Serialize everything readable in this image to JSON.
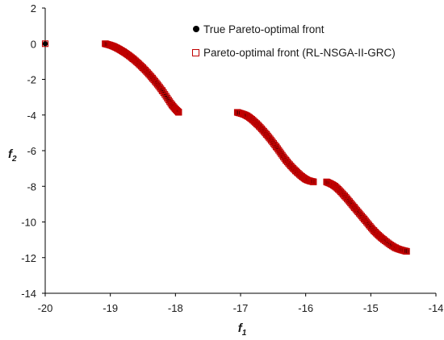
{
  "chart_data": {
    "type": "scatter",
    "xlabel": "f",
    "xlabel_sub": "1",
    "ylabel": "f",
    "ylabel_sub": "2",
    "xlim": [
      -20,
      -14
    ],
    "ylim": [
      -14,
      2
    ],
    "x_ticks": [
      -20,
      -19,
      -18,
      -17,
      -16,
      -15,
      -14
    ],
    "y_ticks": [
      2,
      0,
      -2,
      -4,
      -6,
      -8,
      -10,
      -12,
      -14
    ],
    "grid": false,
    "legend_position": "top-right",
    "series": [
      {
        "name": "True Pareto-optimal front",
        "marker": "filled-circle",
        "color": "#000000",
        "segments": [
          [
            [
              -20.0,
              0.0
            ]
          ],
          [
            [
              -19.08,
              0.0
            ],
            [
              -18.95,
              -0.15
            ],
            [
              -18.8,
              -0.45
            ],
            [
              -18.65,
              -0.85
            ],
            [
              -18.5,
              -1.35
            ],
            [
              -18.35,
              -1.95
            ],
            [
              -18.2,
              -2.65
            ],
            [
              -18.05,
              -3.45
            ],
            [
              -17.95,
              -3.85
            ]
          ],
          [
            [
              -17.05,
              -3.85
            ],
            [
              -16.9,
              -4.05
            ],
            [
              -16.75,
              -4.5
            ],
            [
              -16.6,
              -5.1
            ],
            [
              -16.45,
              -5.8
            ],
            [
              -16.3,
              -6.55
            ],
            [
              -16.15,
              -7.15
            ],
            [
              -16.0,
              -7.6
            ],
            [
              -15.88,
              -7.75
            ]
          ],
          [
            [
              -15.68,
              -7.75
            ],
            [
              -15.55,
              -8.0
            ],
            [
              -15.4,
              -8.55
            ],
            [
              -15.25,
              -9.2
            ],
            [
              -15.1,
              -9.85
            ],
            [
              -14.95,
              -10.5
            ],
            [
              -14.8,
              -11.0
            ],
            [
              -14.62,
              -11.45
            ],
            [
              -14.45,
              -11.65
            ]
          ]
        ]
      },
      {
        "name": "Pareto-optimal front (RL-NSGA-II-GRC)",
        "marker": "open-square",
        "color": "#c00000",
        "segments": [
          [
            [
              -20.0,
              0.0
            ]
          ],
          [
            [
              -19.08,
              0.0
            ],
            [
              -18.95,
              -0.15
            ],
            [
              -18.8,
              -0.45
            ],
            [
              -18.65,
              -0.85
            ],
            [
              -18.5,
              -1.35
            ],
            [
              -18.35,
              -1.95
            ],
            [
              -18.2,
              -2.65
            ],
            [
              -18.05,
              -3.45
            ],
            [
              -17.95,
              -3.85
            ]
          ],
          [
            [
              -17.05,
              -3.85
            ],
            [
              -16.9,
              -4.05
            ],
            [
              -16.75,
              -4.5
            ],
            [
              -16.6,
              -5.1
            ],
            [
              -16.45,
              -5.8
            ],
            [
              -16.3,
              -6.55
            ],
            [
              -16.15,
              -7.15
            ],
            [
              -16.0,
              -7.6
            ],
            [
              -15.88,
              -7.75
            ]
          ],
          [
            [
              -15.68,
              -7.75
            ],
            [
              -15.55,
              -8.0
            ],
            [
              -15.4,
              -8.55
            ],
            [
              -15.25,
              -9.2
            ],
            [
              -15.1,
              -9.85
            ],
            [
              -14.95,
              -10.5
            ],
            [
              -14.8,
              -11.0
            ],
            [
              -14.62,
              -11.45
            ],
            [
              -14.45,
              -11.65
            ]
          ]
        ]
      }
    ]
  }
}
